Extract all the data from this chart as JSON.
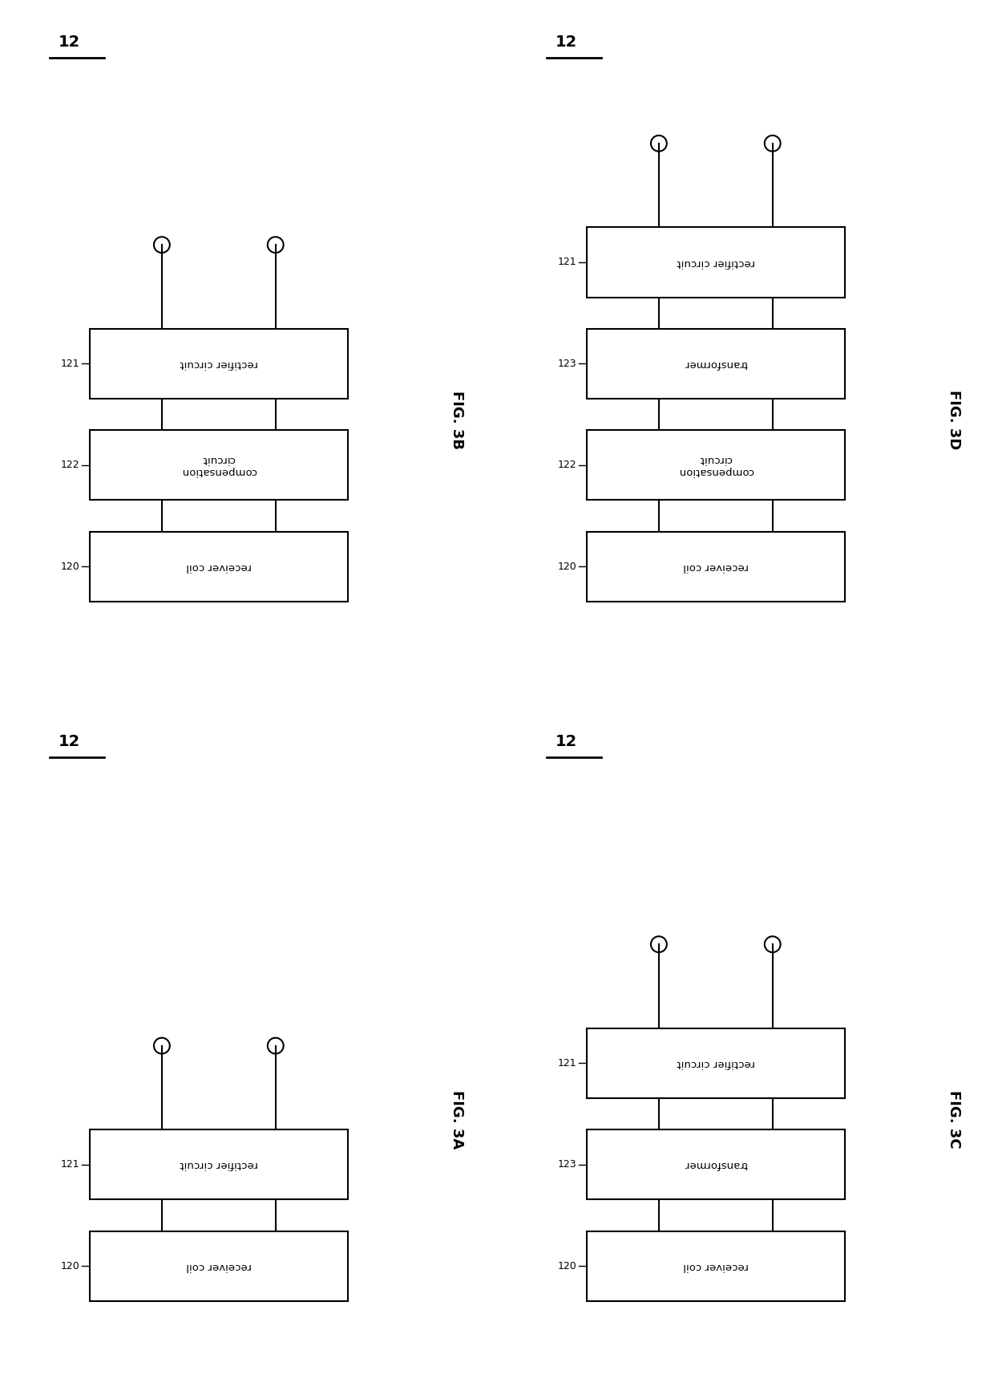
{
  "background_color": "#ffffff",
  "fig_width": 12.4,
  "fig_height": 17.44,
  "diagrams": [
    {
      "id": "3B",
      "label": "FIG. 3B",
      "ref_num": "12",
      "panel": "top_left",
      "blocks": [
        {
          "id": "121",
          "label": "rectifier circuit"
        },
        {
          "id": "122",
          "label": "compensation\ncircuit"
        },
        {
          "id": "120",
          "label": "receiver coil"
        }
      ]
    },
    {
      "id": "3D",
      "label": "FIG. 3D",
      "ref_num": "12",
      "panel": "top_right",
      "blocks": [
        {
          "id": "121",
          "label": "rectifier circuit"
        },
        {
          "id": "123",
          "label": "transformer"
        },
        {
          "id": "122",
          "label": "compensation\ncircuit"
        },
        {
          "id": "120",
          "label": "receiver coil"
        }
      ]
    },
    {
      "id": "3A",
      "label": "FIG. 3A",
      "ref_num": "12",
      "panel": "bottom_left",
      "blocks": [
        {
          "id": "121",
          "label": "rectifier circuit"
        },
        {
          "id": "120",
          "label": "receiver coil"
        }
      ]
    },
    {
      "id": "3C",
      "label": "FIG. 3C",
      "ref_num": "12",
      "panel": "bottom_right",
      "blocks": [
        {
          "id": "121",
          "label": "rectifier circuit"
        },
        {
          "id": "123",
          "label": "transformer"
        },
        {
          "id": "120",
          "label": "receiver coil"
        }
      ]
    }
  ]
}
